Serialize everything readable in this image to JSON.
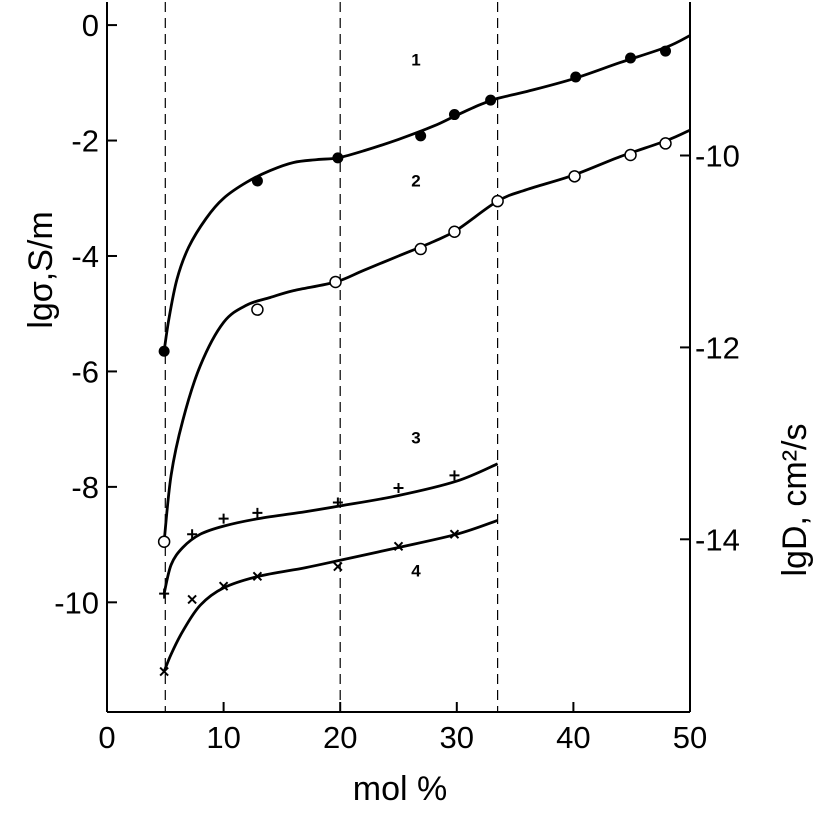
{
  "chart_data": {
    "type": "scatter",
    "x_axis": {
      "label": "mol %",
      "range": [
        0,
        50
      ],
      "ticks": [
        0,
        10,
        20,
        30,
        40,
        50
      ]
    },
    "y_axis_left": {
      "label": "lgσ,S/m",
      "range": [
        -11.9,
        0.4
      ],
      "ticks": [
        0,
        -2,
        -4,
        -6,
        -8,
        -10
      ]
    },
    "y_axis_right": {
      "label": "lgD, cm²/s",
      "range": [
        -15.8,
        -8.4
      ],
      "ticks": [
        -10,
        -12,
        -14
      ]
    },
    "reference_lines_x": [
      5,
      20,
      33.5
    ],
    "grid": false,
    "series": [
      {
        "name": "1",
        "marker": "filled-circle",
        "points": [
          [
            4.9,
            -5.65
          ],
          [
            12.9,
            -2.7
          ],
          [
            19.8,
            -2.3
          ],
          [
            26.9,
            -1.92
          ],
          [
            29.8,
            -1.55
          ],
          [
            32.9,
            -1.3
          ],
          [
            40.2,
            -0.9
          ],
          [
            44.9,
            -0.57
          ],
          [
            47.9,
            -0.45
          ]
        ],
        "curve": [
          [
            4.9,
            -5.65
          ],
          [
            5.3,
            -5.1
          ],
          [
            6,
            -4.4
          ],
          [
            7,
            -3.85
          ],
          [
            8.5,
            -3.35
          ],
          [
            10,
            -3.0
          ],
          [
            12,
            -2.72
          ],
          [
            14,
            -2.52
          ],
          [
            16,
            -2.38
          ],
          [
            18,
            -2.33
          ],
          [
            19.8,
            -2.3
          ],
          [
            22,
            -2.18
          ],
          [
            25,
            -1.98
          ],
          [
            28,
            -1.75
          ],
          [
            30,
            -1.56
          ],
          [
            32,
            -1.38
          ],
          [
            33.5,
            -1.27
          ],
          [
            36,
            -1.15
          ],
          [
            40,
            -0.93
          ],
          [
            44,
            -0.65
          ],
          [
            48,
            -0.38
          ],
          [
            50,
            -0.18
          ]
        ]
      },
      {
        "name": "2",
        "marker": "open-circle",
        "points": [
          [
            4.9,
            -8.95
          ],
          [
            12.9,
            -4.93
          ],
          [
            19.6,
            -4.45
          ],
          [
            26.9,
            -3.88
          ],
          [
            29.8,
            -3.58
          ],
          [
            33.5,
            -3.05
          ],
          [
            40.1,
            -2.62
          ],
          [
            44.9,
            -2.25
          ],
          [
            47.9,
            -2.05
          ]
        ],
        "curve": [
          [
            4.9,
            -8.95
          ],
          [
            5.5,
            -7.8
          ],
          [
            6.5,
            -6.85
          ],
          [
            8,
            -5.9
          ],
          [
            10,
            -5.15
          ],
          [
            12,
            -4.85
          ],
          [
            14,
            -4.72
          ],
          [
            16,
            -4.6
          ],
          [
            19.6,
            -4.45
          ],
          [
            22,
            -4.25
          ],
          [
            25,
            -4.0
          ],
          [
            28,
            -3.75
          ],
          [
            30,
            -3.55
          ],
          [
            33.5,
            -3.05
          ],
          [
            36,
            -2.85
          ],
          [
            40,
            -2.6
          ],
          [
            44,
            -2.28
          ],
          [
            48,
            -2.0
          ],
          [
            50,
            -1.82
          ]
        ]
      },
      {
        "name": "3",
        "marker": "plus",
        "points": [
          [
            4.9,
            -9.85
          ],
          [
            7.3,
            -8.82
          ],
          [
            10,
            -8.55
          ],
          [
            12.9,
            -8.45
          ],
          [
            19.8,
            -8.27
          ],
          [
            25,
            -8.02
          ],
          [
            29.8,
            -7.8
          ]
        ],
        "curve": [
          [
            4.9,
            -9.85
          ],
          [
            5.5,
            -9.35
          ],
          [
            6.5,
            -9.05
          ],
          [
            8,
            -8.82
          ],
          [
            10,
            -8.68
          ],
          [
            13,
            -8.55
          ],
          [
            17,
            -8.43
          ],
          [
            20,
            -8.33
          ],
          [
            25,
            -8.15
          ],
          [
            30,
            -7.9
          ],
          [
            33.5,
            -7.6
          ]
        ]
      },
      {
        "name": "4",
        "marker": "x",
        "points": [
          [
            4.9,
            -11.2
          ],
          [
            7.3,
            -9.95
          ],
          [
            10,
            -9.72
          ],
          [
            12.9,
            -9.55
          ],
          [
            19.8,
            -9.38
          ],
          [
            25,
            -9.03
          ],
          [
            29.8,
            -8.82
          ]
        ],
        "curve": [
          [
            4.9,
            -11.2
          ],
          [
            5.5,
            -10.9
          ],
          [
            6.5,
            -10.5
          ],
          [
            8,
            -10.05
          ],
          [
            10,
            -9.75
          ],
          [
            13,
            -9.55
          ],
          [
            17,
            -9.4
          ],
          [
            20,
            -9.27
          ],
          [
            25,
            -9.05
          ],
          [
            30,
            -8.82
          ],
          [
            33.5,
            -8.58
          ]
        ]
      }
    ],
    "curve_labels": [
      {
        "text": "1",
        "x": 26.5,
        "y": -0.7
      },
      {
        "text": "2",
        "x": 26.5,
        "y": -2.8
      },
      {
        "text": "3",
        "x": 26.5,
        "y": -7.25
      },
      {
        "text": "4",
        "x": 26.5,
        "y": -9.55
      }
    ]
  }
}
